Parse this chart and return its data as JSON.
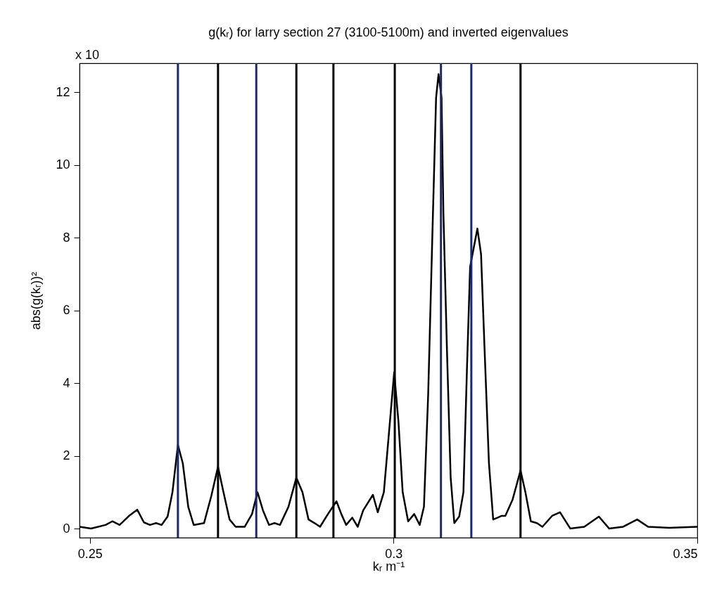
{
  "chart_data": {
    "type": "line",
    "title": "g(kᵣ) for larry section 27 (3100-5100m) and inverted eigenvalues",
    "xlabel": "kᵣ m⁻¹",
    "ylabel": "abs(g(kᵣ))²",
    "annotations": [
      "x 10"
    ],
    "x": [
      0.2483,
      0.2502,
      0.2526,
      0.2537,
      0.2549,
      0.2566,
      0.2578,
      0.2589,
      0.2599,
      0.2609,
      0.2618,
      0.2628,
      0.2636,
      0.2645,
      0.2653,
      0.2662,
      0.2671,
      0.2688,
      0.27,
      0.2711,
      0.272,
      0.273,
      0.274,
      0.2755,
      0.2767,
      0.2776,
      0.2785,
      0.2795,
      0.2804,
      0.2813,
      0.2827,
      0.284,
      0.285,
      0.286,
      0.287,
      0.2879,
      0.2892,
      0.2906,
      0.2914,
      0.2922,
      0.2932,
      0.2941,
      0.295,
      0.2966,
      0.2974,
      0.2984,
      0.2992,
      0.3001,
      0.3008,
      0.3015,
      0.3024,
      0.3034,
      0.3043,
      0.305,
      0.3057,
      0.3064,
      0.307,
      0.3074,
      0.3079,
      0.3082,
      0.3088,
      0.3094,
      0.31,
      0.3108,
      0.3115,
      0.3121,
      0.3126,
      0.3138,
      0.3144,
      0.315,
      0.3157,
      0.3164,
      0.3171,
      0.3178,
      0.3184,
      0.3196,
      0.3209,
      0.3217,
      0.3226,
      0.3236,
      0.3245,
      0.3261,
      0.3274,
      0.3291,
      0.3314,
      0.3338,
      0.3355,
      0.3378,
      0.3401,
      0.3419,
      0.3454,
      0.35
    ],
    "series": [
      {
        "color": "#000000",
        "values": [
          0.05,
          0.0,
          0.1,
          0.2,
          0.1,
          0.37,
          0.52,
          0.17,
          0.1,
          0.15,
          0.1,
          0.33,
          1.0,
          2.3,
          1.8,
          0.6,
          0.1,
          0.15,
          0.9,
          1.7,
          1.0,
          0.25,
          0.05,
          0.05,
          0.4,
          1.0,
          0.5,
          0.1,
          0.15,
          0.1,
          0.6,
          1.4,
          1.0,
          0.25,
          0.15,
          0.05,
          0.4,
          0.75,
          0.4,
          0.1,
          0.3,
          0.05,
          0.5,
          0.93,
          0.45,
          1.0,
          2.55,
          4.3,
          2.95,
          1.0,
          0.2,
          0.4,
          0.1,
          0.6,
          3.7,
          8.15,
          11.85,
          12.5,
          11.85,
          8.7,
          4.85,
          1.4,
          0.15,
          0.33,
          1.0,
          4.5,
          7.2,
          8.25,
          7.55,
          4.85,
          1.8,
          0.25,
          0.3,
          0.35,
          0.35,
          0.8,
          1.6,
          1.0,
          0.2,
          0.15,
          0.05,
          0.35,
          0.45,
          0.0,
          0.05,
          0.33,
          0.0,
          0.05,
          0.25,
          0.05,
          0.02,
          0.05
        ]
      }
    ],
    "xlim": [
      0.2483,
      0.35
    ],
    "xticks": [
      0.25,
      0.3,
      0.35
    ],
    "ylim": [
      -0.25,
      12.8
    ],
    "yticks": [
      0,
      2,
      4,
      6,
      8,
      10,
      12
    ],
    "ref_lines": [
      {
        "axis": "x",
        "value": 0.2645,
        "color": "#1a2a6c"
      },
      {
        "axis": "x",
        "value": 0.2711,
        "color": "#000000"
      },
      {
        "axis": "x",
        "value": 0.2774,
        "color": "#1a2a6c"
      },
      {
        "axis": "x",
        "value": 0.284,
        "color": "#000000"
      },
      {
        "axis": "x",
        "value": 0.2901,
        "color": "#000000"
      },
      {
        "axis": "x",
        "value": 0.3002,
        "color": "#000000"
      },
      {
        "axis": "x",
        "value": 0.3078,
        "color": "#1a2a6c"
      },
      {
        "axis": "x",
        "value": 0.3128,
        "color": "#1a2a6c"
      },
      {
        "axis": "x",
        "value": 0.3209,
        "color": "#000000"
      }
    ]
  }
}
